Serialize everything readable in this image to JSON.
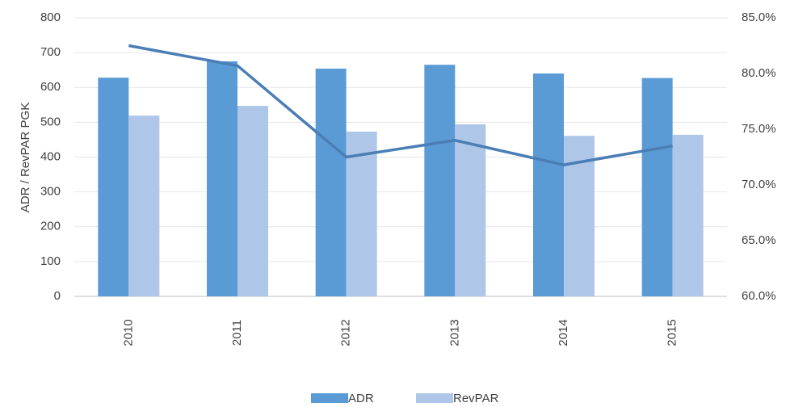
{
  "chart_data": {
    "type": "bar",
    "ylabel": "ADR / RevPAR  PGK",
    "categories": [
      "2010",
      "2011",
      "2012",
      "2013",
      "2014",
      "2015"
    ],
    "series": [
      {
        "name": "ADR",
        "color": "#5b9bd5",
        "values": [
          628,
          675,
          654,
          665,
          640,
          627
        ]
      },
      {
        "name": "RevPAR",
        "color": "#aec6e8",
        "values": [
          519,
          547,
          473,
          494,
          461,
          464
        ]
      },
      {
        "type": "line",
        "axis": "y2",
        "color": "#4a7eb5",
        "values": [
          82.5,
          80.7,
          72.5,
          74.0,
          71.8,
          73.5
        ]
      }
    ],
    "ylim": [
      0,
      800
    ],
    "yticks": [
      0,
      100,
      200,
      300,
      400,
      500,
      600,
      700,
      800
    ],
    "y2lim": [
      60,
      85
    ],
    "y2ticks": [
      {
        "value": 60,
        "label": "60.0%"
      },
      {
        "value": 65,
        "label": "65.0%"
      },
      {
        "value": 70,
        "label": "70.0%"
      },
      {
        "value": 75,
        "label": "75.0%"
      },
      {
        "value": 80,
        "label": "80.0%"
      },
      {
        "value": 85,
        "label": "85.0%"
      }
    ],
    "grid": true,
    "legend": "bottom"
  }
}
